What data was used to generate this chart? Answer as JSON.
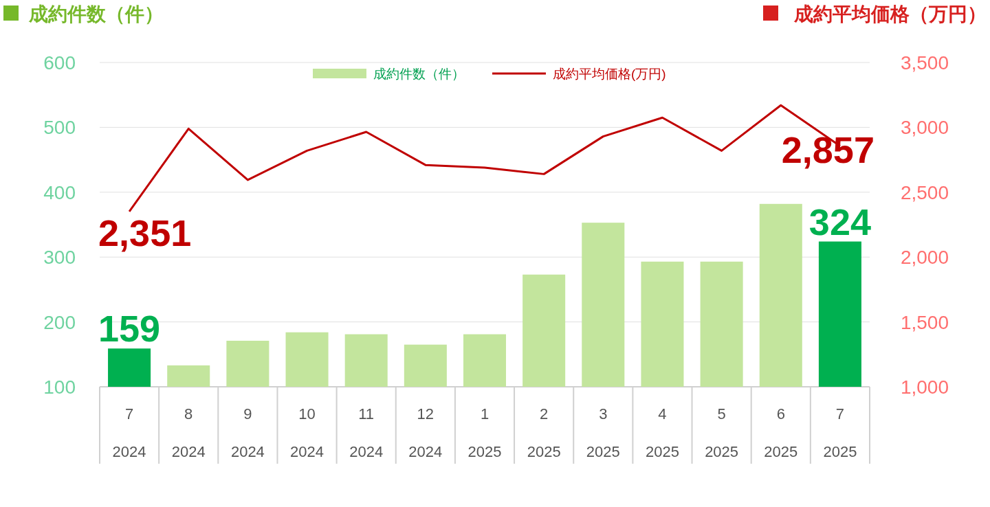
{
  "chart_data": {
    "type": "bar",
    "ylabel": "成約件数（件）",
    "y2label": "成約平均価格（万円）",
    "categories": [
      "7\n2024",
      "8\n2024",
      "9\n2024",
      "10\n2024",
      "11\n2024",
      "12\n2024",
      "1\n2025",
      "2\n2025",
      "3\n2025",
      "4\n2025",
      "5\n2025",
      "6\n2025",
      "7\n2025"
    ],
    "series": [
      {
        "name": "成約件数（件）",
        "color": "#c3e59d",
        "colors": [
          "#00b050",
          "#c3e59d",
          "#c3e59d",
          "#c3e59d",
          "#c3e59d",
          "#c3e59d",
          "#c3e59d",
          "#c3e59d",
          "#c3e59d",
          "#c3e59d",
          "#c3e59d",
          "#c3e59d",
          "#00b050"
        ],
        "values": [
          159,
          133,
          171,
          184,
          181,
          165,
          181,
          273,
          353,
          293,
          293,
          382,
          324
        ],
        "value_labels": [
          "159",
          null,
          null,
          null,
          null,
          null,
          null,
          null,
          null,
          null,
          null,
          null,
          "324"
        ]
      },
      {
        "name": "成約平均価格(万円)",
        "type": "line",
        "axis": "y2",
        "color": "#c00000",
        "values": [
          2351,
          2990,
          2595,
          2820,
          2965,
          2710,
          2690,
          2640,
          2930,
          3075,
          2820,
          3170,
          2857
        ],
        "value_labels": [
          "2,351",
          null,
          null,
          null,
          null,
          null,
          null,
          null,
          null,
          null,
          null,
          null,
          "2,857"
        ]
      }
    ],
    "ylim": [
      100,
      600
    ],
    "yticks": [
      100,
      200,
      300,
      400,
      500,
      600
    ],
    "y2lim": [
      1000,
      3500
    ],
    "y2ticks": [
      {
        "value": 1000,
        "label": "1,000"
      },
      {
        "value": 1500,
        "label": "1,500"
      },
      {
        "value": 2000,
        "label": "2,000"
      },
      {
        "value": 2500,
        "label": "2,500"
      },
      {
        "value": 3000,
        "label": "3,000"
      },
      {
        "value": 3500,
        "label": "3,500"
      }
    ],
    "grid": "y",
    "legend": "top"
  }
}
